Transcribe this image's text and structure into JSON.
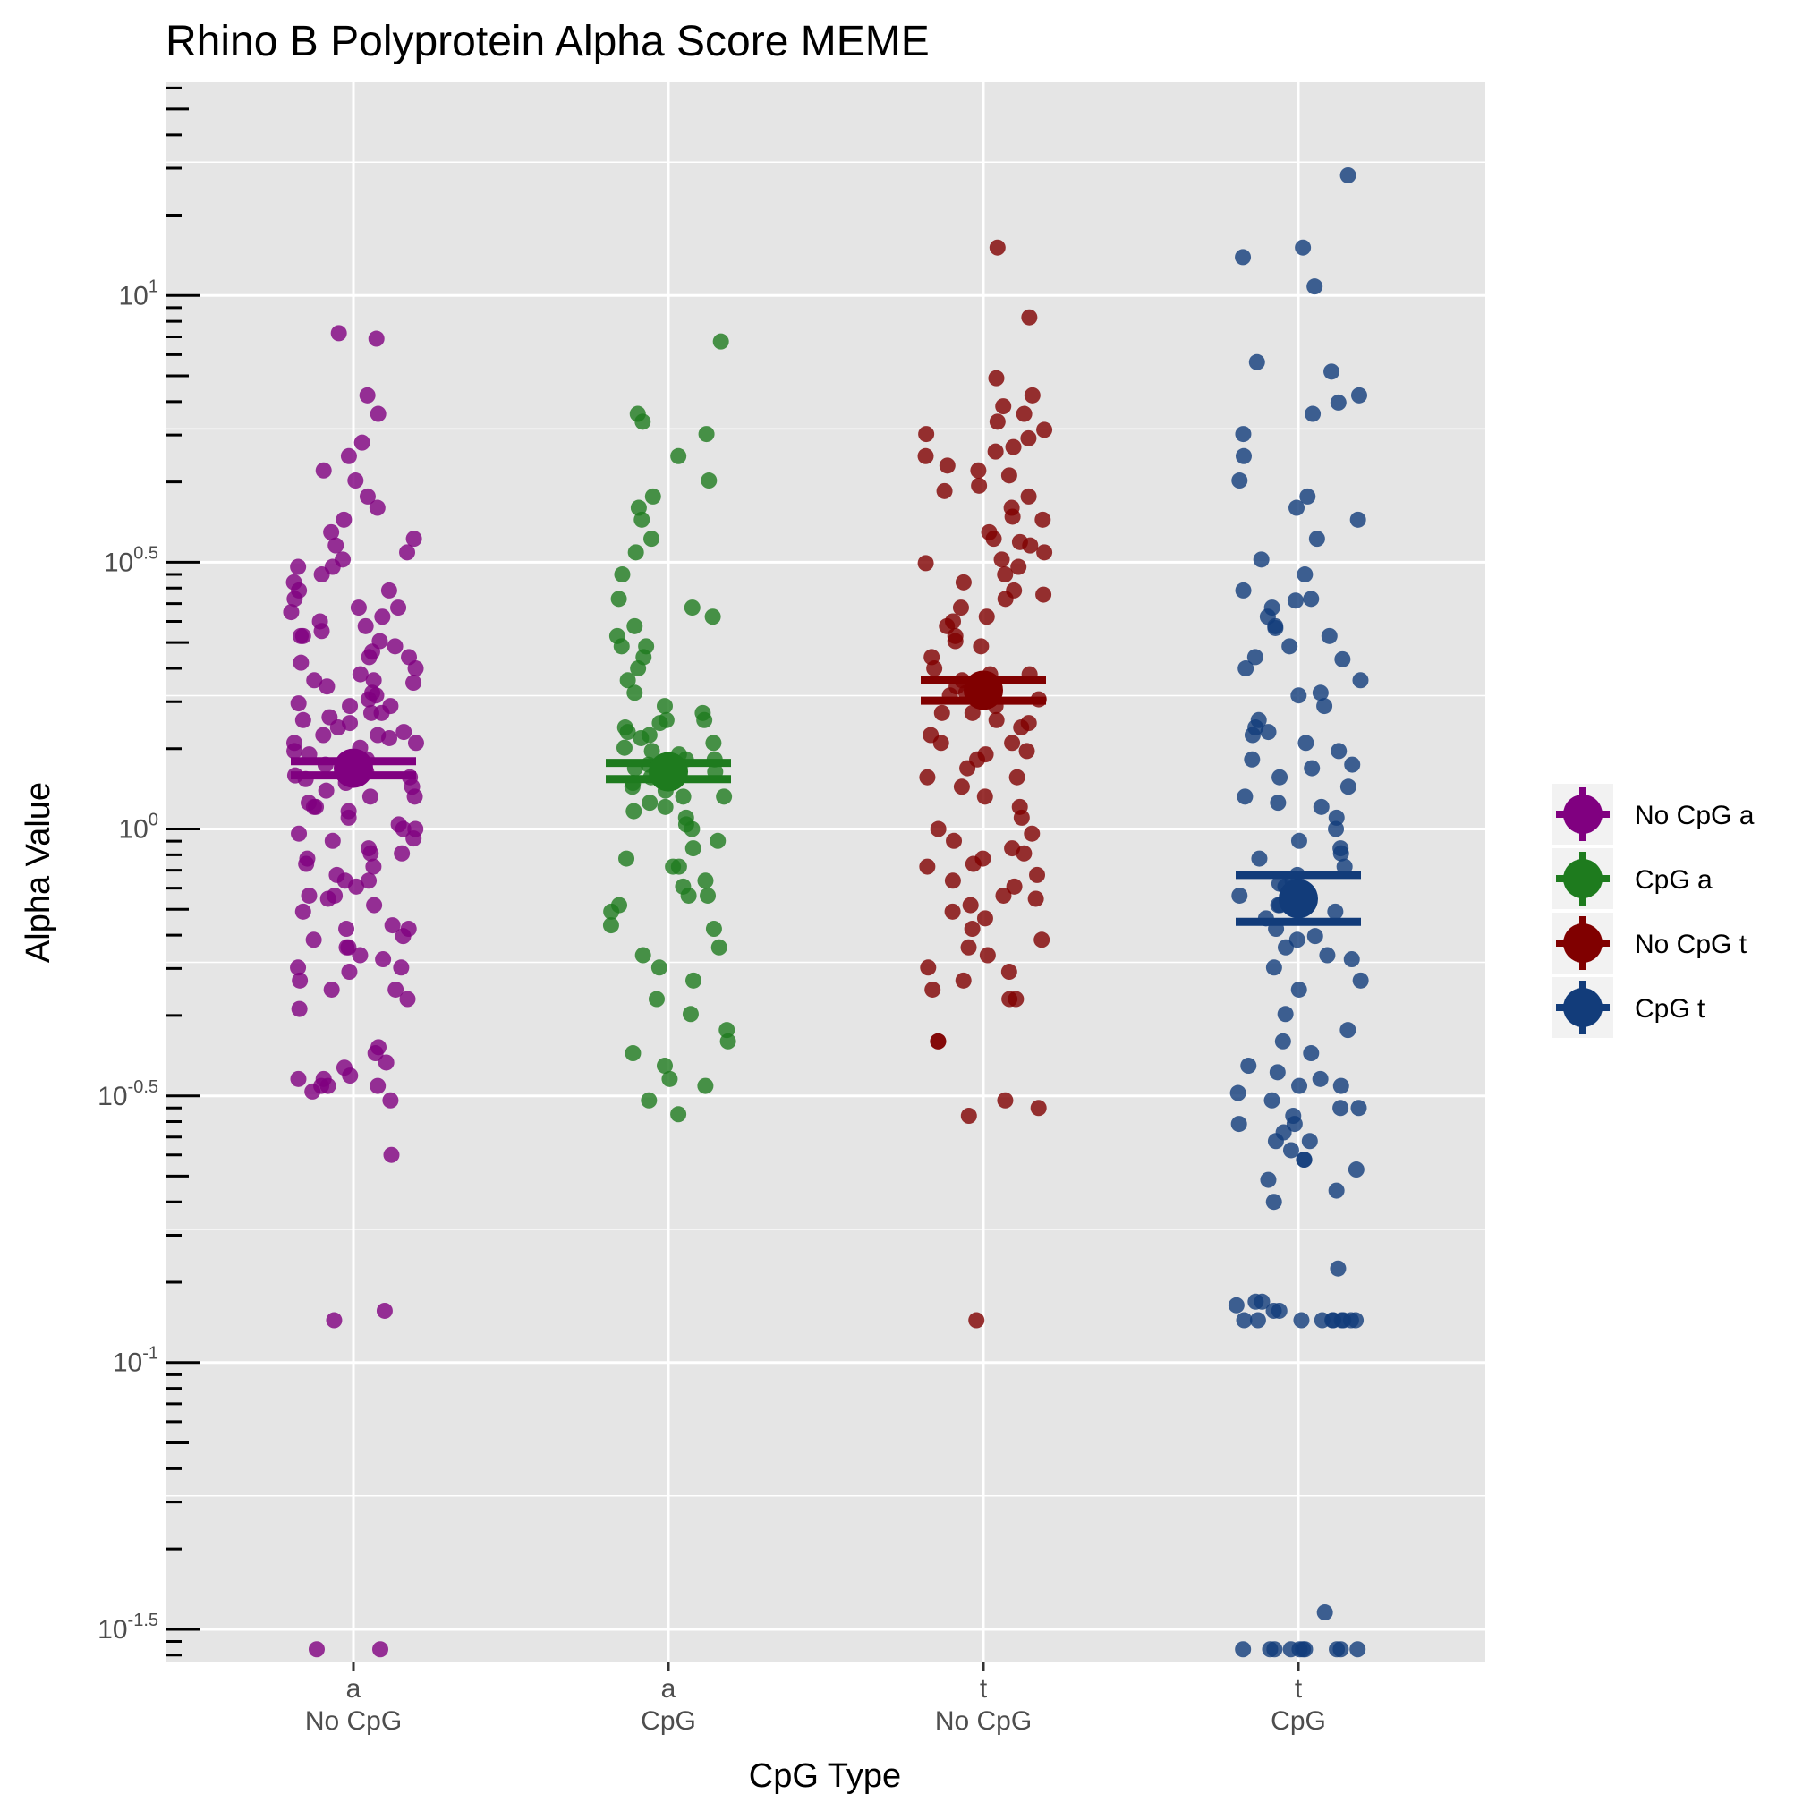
{
  "chart_data": {
    "type": "scatter",
    "title": "Rhino B Polyprotein Alpha Score MEME",
    "xlabel": "CpG Type",
    "ylabel": "Alpha Value",
    "y_scale": "log10",
    "ylim": [
      0.0275,
      25.1
    ],
    "y_ticks": [
      {
        "base": "10",
        "exp": "-1.5",
        "value": 0.0316
      },
      {
        "base": "10",
        "exp": "-1",
        "value": 0.1
      },
      {
        "base": "10",
        "exp": "-0.5",
        "value": 0.316
      },
      {
        "base": "10",
        "exp": "0",
        "value": 1
      },
      {
        "base": "10",
        "exp": "0.5",
        "value": 3.162
      },
      {
        "base": "10",
        "exp": "1",
        "value": 10
      }
    ],
    "categories": [
      {
        "top": "a",
        "bottom": "No CpG"
      },
      {
        "top": "a",
        "bottom": "CpG"
      },
      {
        "top": "t",
        "bottom": "No CpG"
      },
      {
        "top": "t",
        "bottom": "CpG"
      }
    ],
    "legend_position": "right",
    "grid": true,
    "series": [
      {
        "name": "No CpG a",
        "color": "#800080",
        "mean": 1.3,
        "error_low": 1.26,
        "error_high": 1.34,
        "points": [
          0.029,
          0.029,
          0.125,
          0.12,
          0.245,
          0.33,
          0.33,
          0.322,
          0.34,
          0.345,
          0.33,
          0.31,
          0.34,
          0.357,
          0.365,
          0.38,
          0.39,
          0.46,
          0.5,
          0.48,
          0.5,
          0.52,
          0.54,
          0.57,
          0.55,
          0.6,
          0.58,
          0.62,
          0.66,
          0.63,
          0.6,
          0.65,
          0.7,
          0.72,
          0.75,
          0.74,
          0.8,
          0.78,
          0.85,
          0.82,
          0.88,
          0.9,
          0.86,
          0.92,
          0.95,
          0.98,
          0.96,
          1.0,
          1.02,
          1.05,
          1.08,
          1.1,
          1.12,
          1.15,
          1.18,
          1.2,
          1.22,
          1.24,
          1.26,
          1.28,
          1.3,
          1.32,
          1.35,
          1.38,
          1.4,
          1.42,
          1.45,
          1.48,
          1.5,
          1.52,
          1.55,
          1.58,
          1.6,
          1.62,
          1.65,
          1.7,
          1.72,
          1.75,
          1.78,
          1.8,
          1.85,
          1.88,
          1.9,
          1.95,
          2.0,
          2.05,
          2.1,
          2.15,
          2.2,
          2.25,
          2.3,
          2.35,
          2.4,
          2.45,
          2.5,
          2.55,
          2.6,
          2.7,
          2.8,
          2.9,
          3.0,
          3.1,
          3.2,
          3.3,
          3.4,
          3.5,
          3.6,
          3.8,
          4.0,
          4.2,
          4.5,
          4.7,
          5.0,
          5.3,
          6.0,
          6.5,
          8.3,
          8.5,
          1.0,
          1.1,
          1.25,
          1.35,
          1.5,
          1.7,
          1.9,
          2.1,
          2.3,
          2.6,
          2.8,
          3.1,
          0.9,
          0.8,
          0.75,
          0.65,
          0.55,
          1.15,
          1.45,
          1.65
        ]
      },
      {
        "name": "CpG a",
        "color": "#1e7b1e",
        "mean": 1.28,
        "error_low": 1.24,
        "error_high": 1.33,
        "points": [
          0.292,
          0.33,
          0.31,
          0.34,
          0.36,
          0.38,
          0.4,
          0.42,
          0.45,
          0.48,
          0.52,
          0.55,
          0.58,
          0.6,
          0.65,
          0.7,
          0.72,
          0.75,
          0.78,
          0.8,
          0.85,
          0.88,
          0.92,
          0.95,
          1.0,
          1.02,
          1.05,
          1.08,
          1.1,
          1.12,
          1.15,
          1.18,
          1.2,
          1.22,
          1.25,
          1.28,
          1.3,
          1.32,
          1.35,
          1.38,
          1.4,
          1.42,
          1.45,
          1.48,
          1.5,
          1.52,
          1.55,
          1.58,
          1.6,
          1.65,
          1.7,
          1.8,
          1.9,
          2.0,
          2.1,
          2.2,
          2.3,
          2.4,
          2.5,
          2.6,
          2.7,
          3.0,
          3.3,
          3.5,
          3.8,
          4.0,
          4.2,
          4.5,
          5.0,
          5.5,
          5.8,
          6.0,
          8.2,
          0.85,
          0.75,
          0.66,
          1.15,
          1.35,
          1.6,
          2.2
        ]
      },
      {
        "name": "No CpG t",
        "color": "#800000",
        "mean": 1.82,
        "error_low": 1.74,
        "error_high": 1.9,
        "points": [
          0.12,
          0.29,
          0.3,
          0.31,
          0.4,
          0.4,
          0.48,
          0.48,
          0.5,
          0.52,
          0.54,
          0.55,
          0.58,
          0.6,
          0.62,
          0.65,
          0.68,
          0.7,
          0.72,
          0.75,
          0.78,
          0.8,
          0.82,
          0.85,
          0.88,
          0.9,
          0.92,
          0.95,
          1.0,
          1.05,
          1.1,
          1.15,
          1.2,
          1.25,
          1.3,
          1.35,
          1.4,
          1.45,
          1.5,
          1.55,
          1.6,
          1.65,
          1.7,
          1.75,
          1.8,
          1.85,
          1.9,
          1.95,
          2.0,
          2.1,
          2.2,
          2.3,
          2.4,
          2.5,
          2.6,
          2.7,
          2.8,
          2.9,
          3.0,
          3.1,
          3.2,
          3.3,
          3.4,
          3.5,
          3.6,
          3.8,
          4.0,
          4.2,
          4.4,
          4.6,
          4.8,
          5.0,
          5.2,
          5.4,
          5.6,
          5.8,
          6.0,
          6.2,
          6.5,
          7.0,
          9.1,
          12.3,
          1.25,
          1.45,
          1.65,
          1.95,
          2.25,
          2.45,
          2.75,
          3.15,
          3.45,
          3.85,
          4.3,
          4.7,
          5.1,
          5.5,
          0.98,
          0.86,
          0.74,
          1.38,
          1.58,
          1.78
        ]
      },
      {
        "name": "CpG t",
        "color": "#123c7a",
        "mean": 0.74,
        "error_low": 0.67,
        "error_high": 0.82,
        "points": [
          0.029,
          0.029,
          0.029,
          0.029,
          0.029,
          0.029,
          0.029,
          0.029,
          0.029,
          0.029,
          0.034,
          0.12,
          0.12,
          0.12,
          0.12,
          0.12,
          0.12,
          0.12,
          0.12,
          0.12,
          0.12,
          0.125,
          0.13,
          0.13,
          0.125,
          0.128,
          0.15,
          0.2,
          0.21,
          0.22,
          0.23,
          0.24,
          0.25,
          0.26,
          0.27,
          0.28,
          0.29,
          0.3,
          0.31,
          0.32,
          0.33,
          0.34,
          0.35,
          0.38,
          0.4,
          0.45,
          0.5,
          0.55,
          0.58,
          0.6,
          0.62,
          0.65,
          0.68,
          0.7,
          0.72,
          0.75,
          0.78,
          0.8,
          0.82,
          0.85,
          0.88,
          0.9,
          0.95,
          1.0,
          1.05,
          1.1,
          1.15,
          1.2,
          1.25,
          1.3,
          1.35,
          1.4,
          1.45,
          1.5,
          1.55,
          1.6,
          1.7,
          1.8,
          1.9,
          2.0,
          2.1,
          2.2,
          2.3,
          2.4,
          2.5,
          2.6,
          2.7,
          2.8,
          3.0,
          3.2,
          3.5,
          3.8,
          4.0,
          4.2,
          4.5,
          5.0,
          5.5,
          6.0,
          6.5,
          7.2,
          7.5,
          6.3,
          10.4,
          11.8,
          12.3,
          16.8,
          0.24,
          0.26,
          0.28,
          0.3,
          0.33,
          0.36,
          0.42,
          0.52,
          0.57,
          0.63,
          0.72,
          0.79,
          0.92,
          1.12,
          1.32,
          1.52,
          1.78,
          2.08,
          2.38,
          2.68
        ]
      }
    ]
  }
}
